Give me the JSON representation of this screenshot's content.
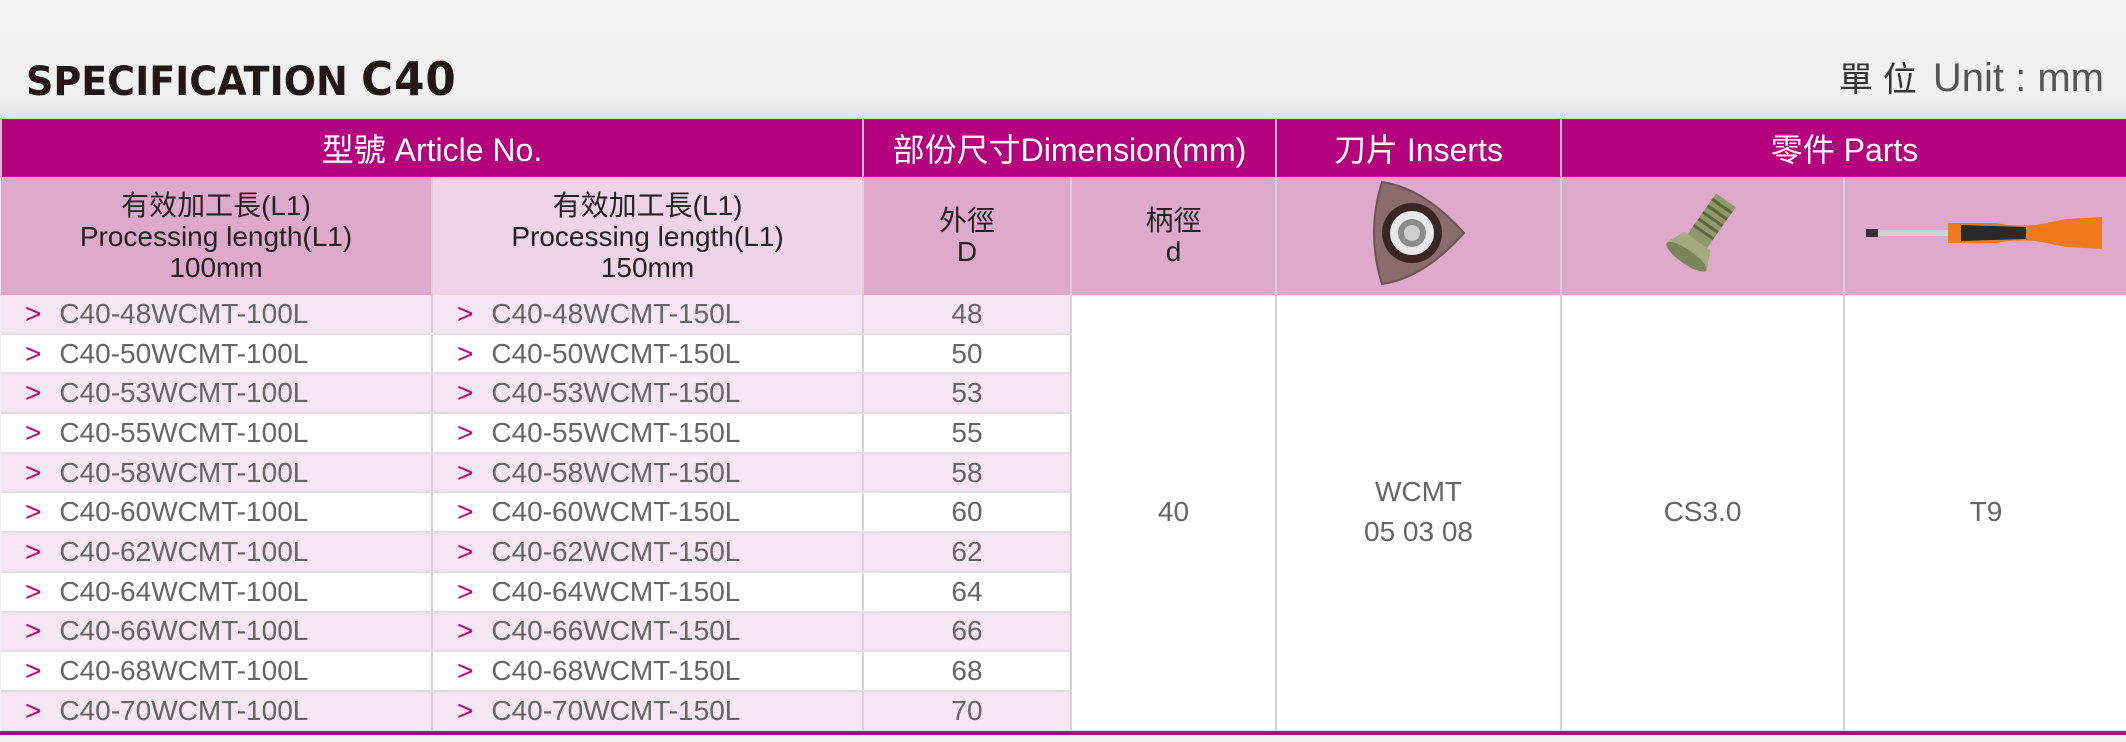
{
  "header": {
    "title_prefix": "SPECIFICATION",
    "title_model": "C40",
    "unit_cn": "單位",
    "unit_en": "Unit : mm"
  },
  "colors": {
    "brand": "#b5007e",
    "subheader": "#dfa9cc",
    "subheader_light": "#efd3e6",
    "row_alt": "#f5e6f2"
  },
  "table": {
    "groups": {
      "article": "型號  Article No.",
      "dimension": "部份尺寸Dimension(mm)",
      "inserts": "刀片  Inserts",
      "parts": "零件  Parts"
    },
    "subheaders": {
      "col1_cn": "有效加工長(L1)",
      "col1_en": "Processing length(L1)",
      "col1_len": "100mm",
      "col2_cn": "有效加工長(L1)",
      "col2_en": "Processing length(L1)",
      "col2_len": "150mm",
      "D_cn": "外徑",
      "D": "D",
      "d_cn": "柄徑",
      "d": "d"
    },
    "icons": {
      "insert": "insert-image",
      "screw": "screw-image",
      "driver": "screwdriver-image",
      "row_marker": "chevron-right-icon"
    },
    "rows": [
      {
        "a100": "C40-48WCMT-100L",
        "a150": "C40-48WCMT-150L",
        "D": "48"
      },
      {
        "a100": "C40-50WCMT-100L",
        "a150": "C40-50WCMT-150L",
        "D": "50"
      },
      {
        "a100": "C40-53WCMT-100L",
        "a150": "C40-53WCMT-150L",
        "D": "53"
      },
      {
        "a100": "C40-55WCMT-100L",
        "a150": "C40-55WCMT-150L",
        "D": "55"
      },
      {
        "a100": "C40-58WCMT-100L",
        "a150": "C40-58WCMT-150L",
        "D": "58"
      },
      {
        "a100": "C40-60WCMT-100L",
        "a150": "C40-60WCMT-150L",
        "D": "60"
      },
      {
        "a100": "C40-62WCMT-100L",
        "a150": "C40-62WCMT-150L",
        "D": "62"
      },
      {
        "a100": "C40-64WCMT-100L",
        "a150": "C40-64WCMT-150L",
        "D": "64"
      },
      {
        "a100": "C40-66WCMT-100L",
        "a150": "C40-66WCMT-150L",
        "D": "66"
      },
      {
        "a100": "C40-68WCMT-100L",
        "a150": "C40-68WCMT-150L",
        "D": "68"
      },
      {
        "a100": "C40-70WCMT-100L",
        "a150": "C40-70WCMT-150L",
        "D": "70"
      }
    ],
    "shank_d": "40",
    "insert_line1": "WCMT",
    "insert_line2": "05 03 08",
    "screw": "CS3.0",
    "driver": "T9"
  }
}
